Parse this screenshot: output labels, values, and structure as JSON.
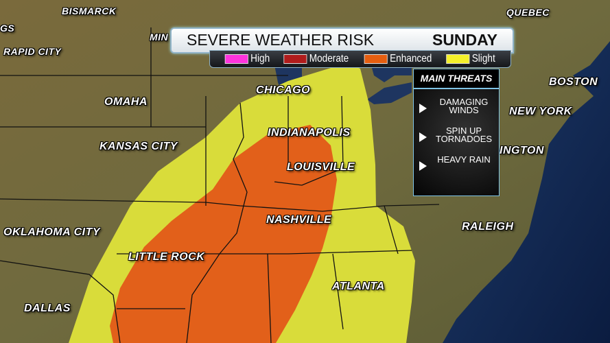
{
  "header": {
    "title": "SEVERE WEATHER RISK",
    "day": "SUNDAY"
  },
  "legend": [
    {
      "label": "High",
      "color": "#ff33dd"
    },
    {
      "label": "Moderate",
      "color": "#b01c1c"
    },
    {
      "label": "Enhanced",
      "color": "#e55e10"
    },
    {
      "label": "Slight",
      "color": "#f4f02a"
    }
  ],
  "threats": {
    "title": "MAIN THREATS",
    "items": [
      "DAMAGING WINDS",
      "SPIN UP TORNADOES",
      "HEAVY RAIN"
    ]
  },
  "risk_areas": {
    "slight_color": "#d9dc3a",
    "enhanced_color": "#e2601a"
  },
  "cities": [
    "BISMARCK",
    "GS",
    "RAPID CITY",
    "MIN",
    "OMAHA",
    "KANSAS CITY",
    "CHICAGO",
    "INDIANAPOLIS",
    "LOUISVILLE",
    "NASHVILLE",
    "OKLAHOMA CITY",
    "LITTLE ROCK",
    "DALLAS",
    "ATLANTA",
    "RALEIGH",
    "QUEBEC",
    "BOSTON",
    "NEW YORK",
    "INGTON"
  ]
}
